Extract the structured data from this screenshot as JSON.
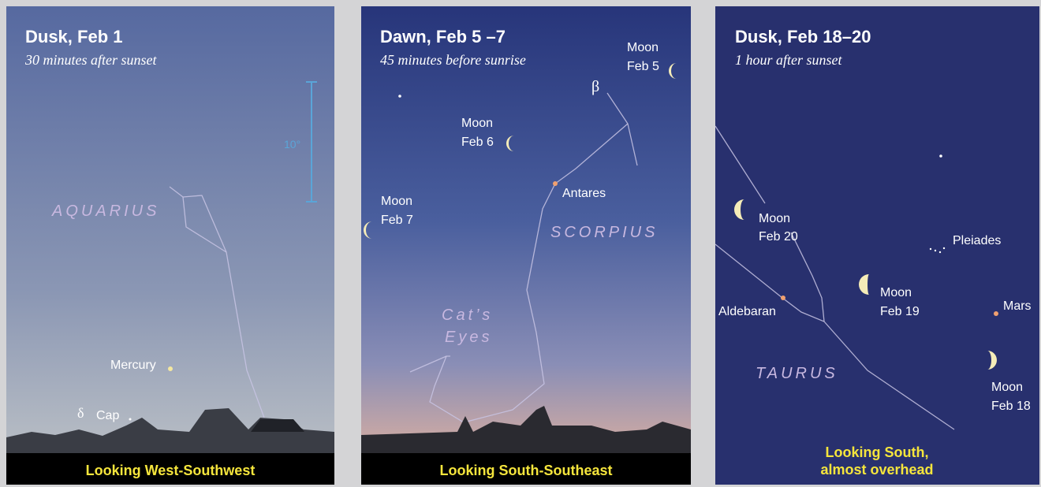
{
  "panels": [
    {
      "title": "Dusk, Feb 1",
      "subtitle": "30 minutes after sunset",
      "labels": [
        "10°",
        "AQUARIUS",
        "Mercury",
        "δ",
        "Cap"
      ],
      "footer": [
        "Looking West-Southwest"
      ]
    },
    {
      "title": "Dawn, Feb 5 –7",
      "subtitle": "45 minutes before sunrise",
      "labels": [
        "Moon",
        "Feb 5",
        "β",
        "Moon",
        "Feb 6",
        "Moon",
        "Feb 7",
        "Antares",
        "SCORPIUS",
        "Cat’s",
        "Eyes"
      ],
      "footer": [
        "Looking South-Southeast"
      ]
    },
    {
      "title": "Dusk, Feb 18–20",
      "subtitle": "1 hour after sunset",
      "labels": [
        "Moon",
        "Feb 20",
        "Pleiades",
        "Moon",
        "Feb 19",
        "Aldebaran",
        "Mars",
        "TAURUS",
        "Moon",
        "Feb 18"
      ],
      "footer": [
        "Looking South,",
        "almost overhead"
      ]
    }
  ]
}
